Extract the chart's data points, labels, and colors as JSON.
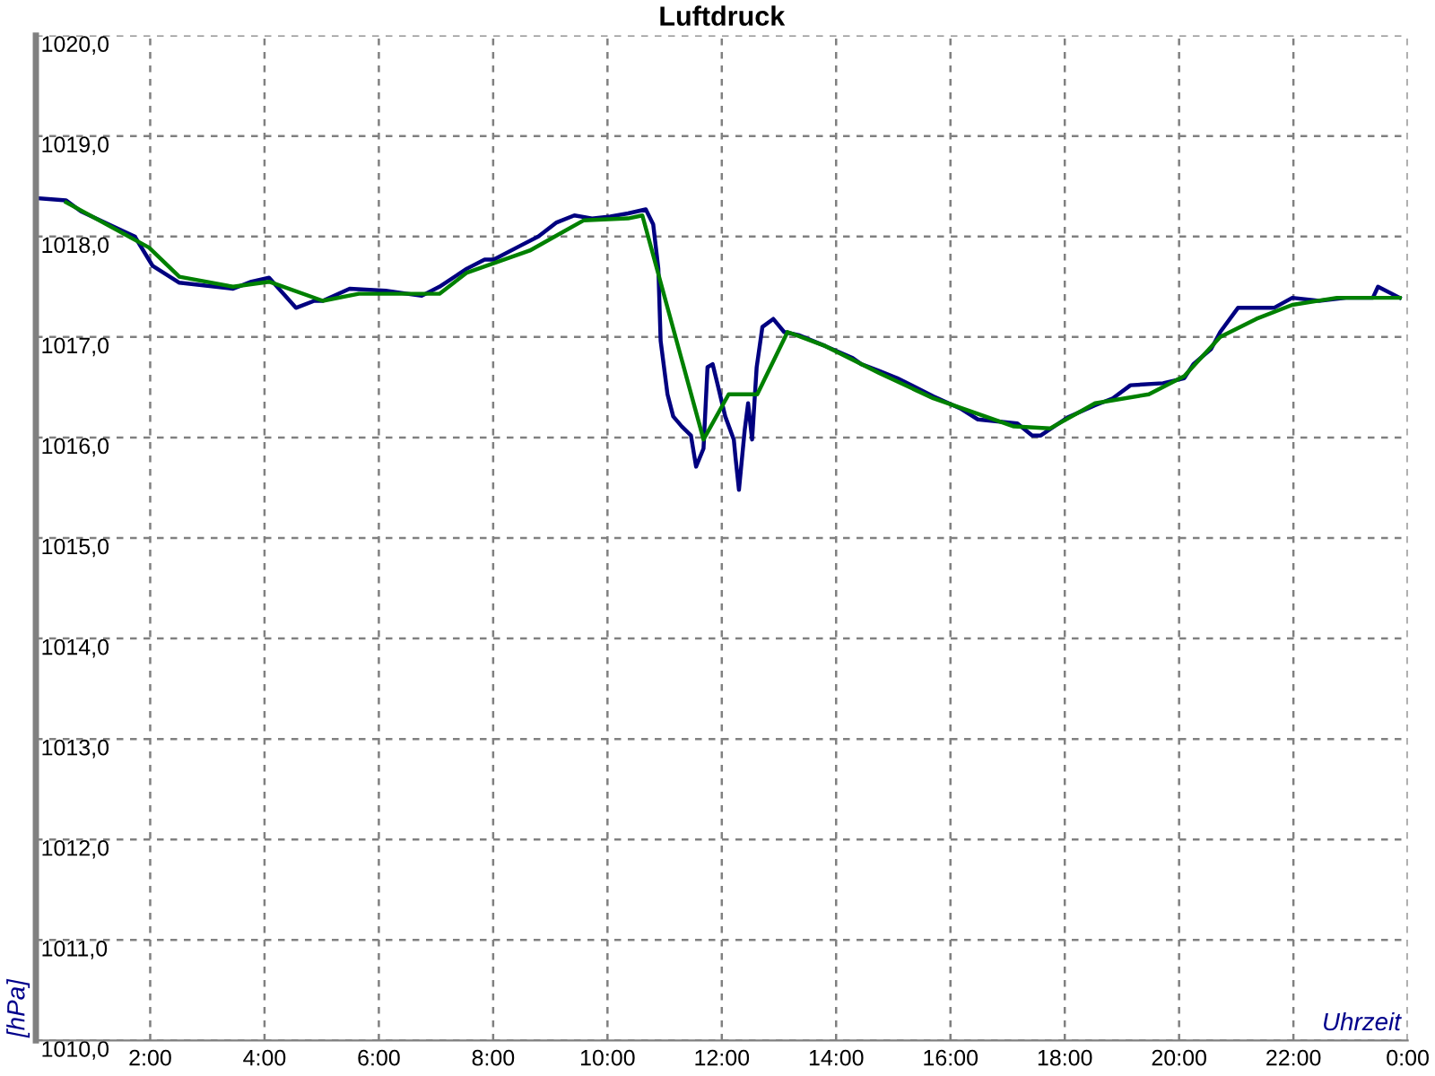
{
  "chart_data": {
    "type": "line",
    "title": "Luftdruck",
    "xlabel": "Uhrzeit",
    "ylabel": "[hPa]",
    "xlim": [
      0,
      24
    ],
    "ylim": [
      1010,
      1020
    ],
    "xticks": [
      {
        "value": 0,
        "label": null
      },
      {
        "value": 2,
        "label": "2:00"
      },
      {
        "value": 4,
        "label": "4:00"
      },
      {
        "value": 6,
        "label": "6:00"
      },
      {
        "value": 8,
        "label": "8:00"
      },
      {
        "value": 10,
        "label": "10:00"
      },
      {
        "value": 12,
        "label": "12:00"
      },
      {
        "value": 14,
        "label": "14:00"
      },
      {
        "value": 16,
        "label": "16:00"
      },
      {
        "value": 18,
        "label": "18:00"
      },
      {
        "value": 20,
        "label": "20:00"
      },
      {
        "value": 22,
        "label": "22:00"
      },
      {
        "value": 24,
        "label": "0:00"
      }
    ],
    "yticks": [
      {
        "value": 1010,
        "label": "1010,0"
      },
      {
        "value": 1011,
        "label": "1011,0"
      },
      {
        "value": 1012,
        "label": "1012,0"
      },
      {
        "value": 1013,
        "label": "1013,0"
      },
      {
        "value": 1014,
        "label": "1014,0"
      },
      {
        "value": 1015,
        "label": "1015,0"
      },
      {
        "value": 1016,
        "label": "1016,0"
      },
      {
        "value": 1017,
        "label": "1017,0"
      },
      {
        "value": 1018,
        "label": "1018,0"
      },
      {
        "value": 1019,
        "label": "1019,0"
      },
      {
        "value": 1020,
        "label": "1020,0"
      }
    ],
    "grid": true,
    "marker": "none",
    "line_style": "solid",
    "series": [
      {
        "color": "#000080",
        "x": [
          0.06,
          0.53,
          0.79,
          1.35,
          1.73,
          2.04,
          2.51,
          3.45,
          3.77,
          4.08,
          4.55,
          4.87,
          5.02,
          5.49,
          6.12,
          6.75,
          7.06,
          7.54,
          7.85,
          8.01,
          8.48,
          8.79,
          9.11,
          9.42,
          9.73,
          10.05,
          10.36,
          10.67,
          10.8,
          10.89,
          10.93,
          11.05,
          11.15,
          11.3,
          11.46,
          11.55,
          11.68,
          11.75,
          11.84,
          11.93,
          12.06,
          12.21,
          12.24,
          12.3,
          12.4,
          12.46,
          12.53,
          12.61,
          12.71,
          12.9,
          13.09,
          13.34,
          13.81,
          14.29,
          14.44,
          14.76,
          15.07,
          15.7,
          16.17,
          16.48,
          17.17,
          17.43,
          17.58,
          18.05,
          18.53,
          18.84,
          19.15,
          19.72,
          20.09,
          20.25,
          20.56,
          20.72,
          21.03,
          21.66,
          21.98,
          22.45,
          22.92,
          23.39,
          23.48,
          23.86
        ],
        "values": [
          1018.38,
          1018.36,
          1018.25,
          1018.1,
          1018.0,
          1017.71,
          1017.54,
          1017.48,
          1017.55,
          1017.59,
          1017.29,
          1017.36,
          1017.36,
          1017.48,
          1017.46,
          1017.41,
          1017.5,
          1017.68,
          1017.77,
          1017.77,
          1017.91,
          1018.0,
          1018.14,
          1018.21,
          1018.18,
          1018.2,
          1018.23,
          1018.27,
          1018.12,
          1017.68,
          1016.96,
          1016.43,
          1016.21,
          1016.11,
          1016.02,
          1015.71,
          1015.89,
          1016.7,
          1016.73,
          1016.52,
          1016.21,
          1015.98,
          1015.8,
          1015.48,
          1016.07,
          1016.34,
          1015.98,
          1016.7,
          1017.1,
          1017.18,
          1017.05,
          1017.02,
          1016.91,
          1016.79,
          1016.73,
          1016.66,
          1016.59,
          1016.41,
          1016.29,
          1016.18,
          1016.14,
          1016.02,
          1016.02,
          1016.2,
          1016.32,
          1016.39,
          1016.52,
          1016.54,
          1016.59,
          1016.73,
          1016.88,
          1017.05,
          1017.29,
          1017.29,
          1017.39,
          1017.36,
          1017.39,
          1017.39,
          1017.5,
          1017.39
        ]
      },
      {
        "color": "#008000",
        "x": [
          0.53,
          1.98,
          2.51,
          3.45,
          4.08,
          5.02,
          5.65,
          7.06,
          7.54,
          8.64,
          9.58,
          10.36,
          10.61,
          11.68,
          12.12,
          12.62,
          13.15,
          13.81,
          14.76,
          15.7,
          17.11,
          17.74,
          18.53,
          19.47,
          20.09,
          20.72,
          21.35,
          21.98,
          22.76,
          23.86
        ],
        "values": [
          1018.34,
          1017.89,
          1017.6,
          1017.5,
          1017.55,
          1017.36,
          1017.43,
          1017.43,
          1017.64,
          1017.86,
          1018.16,
          1018.18,
          1018.21,
          1015.98,
          1016.43,
          1016.43,
          1017.05,
          1016.91,
          1016.64,
          1016.39,
          1016.11,
          1016.09,
          1016.34,
          1016.43,
          1016.61,
          1017.0,
          1017.18,
          1017.32,
          1017.39,
          1017.39
        ]
      }
    ]
  }
}
